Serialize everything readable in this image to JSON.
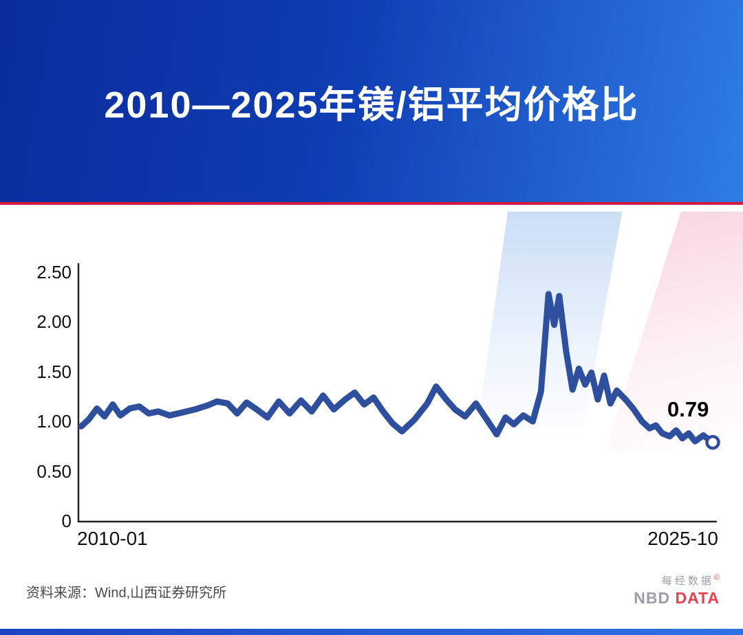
{
  "header": {
    "title": "2010—2025年镁/铝平均价格比"
  },
  "chart_data": {
    "type": "line",
    "title": "2010—2025年镁/铝平均价格比",
    "grid": false,
    "legend": "none",
    "line_color": "#2e4f9e",
    "x_axis": {
      "start_label": "2010-01",
      "end_label": "2025-10",
      "unit": "fraction of span from 2010-01 to 2025-10"
    },
    "y_axis": {
      "min": 0,
      "max": 2.5,
      "tick_values": [
        0,
        0.5,
        1.0,
        1.5,
        2.0,
        2.5
      ],
      "tick_labels": [
        "0",
        "0.50",
        "1.00",
        "1.50",
        "2.00",
        "2.50"
      ]
    },
    "annotations": [
      {
        "text": "0.79",
        "target": "last-point"
      }
    ],
    "series": [
      {
        "name": "镁/铝平均价格比",
        "points": [
          [
            0.0,
            0.95
          ],
          [
            0.012,
            1.02
          ],
          [
            0.025,
            1.13
          ],
          [
            0.037,
            1.05
          ],
          [
            0.05,
            1.17
          ],
          [
            0.062,
            1.06
          ],
          [
            0.077,
            1.13
          ],
          [
            0.092,
            1.15
          ],
          [
            0.107,
            1.08
          ],
          [
            0.122,
            1.1
          ],
          [
            0.14,
            1.06
          ],
          [
            0.16,
            1.09
          ],
          [
            0.18,
            1.12
          ],
          [
            0.2,
            1.16
          ],
          [
            0.215,
            1.2
          ],
          [
            0.232,
            1.18
          ],
          [
            0.247,
            1.08
          ],
          [
            0.262,
            1.19
          ],
          [
            0.278,
            1.12
          ],
          [
            0.295,
            1.04
          ],
          [
            0.313,
            1.2
          ],
          [
            0.33,
            1.08
          ],
          [
            0.348,
            1.21
          ],
          [
            0.365,
            1.1
          ],
          [
            0.383,
            1.26
          ],
          [
            0.4,
            1.12
          ],
          [
            0.418,
            1.22
          ],
          [
            0.433,
            1.29
          ],
          [
            0.448,
            1.17
          ],
          [
            0.463,
            1.24
          ],
          [
            0.478,
            1.1
          ],
          [
            0.493,
            0.98
          ],
          [
            0.508,
            0.9
          ],
          [
            0.528,
            1.02
          ],
          [
            0.548,
            1.18
          ],
          [
            0.562,
            1.35
          ],
          [
            0.578,
            1.22
          ],
          [
            0.592,
            1.12
          ],
          [
            0.608,
            1.05
          ],
          [
            0.625,
            1.18
          ],
          [
            0.642,
            1.02
          ],
          [
            0.658,
            0.87
          ],
          [
            0.672,
            1.04
          ],
          [
            0.685,
            0.97
          ],
          [
            0.7,
            1.06
          ],
          [
            0.715,
            1.0
          ],
          [
            0.728,
            1.3
          ],
          [
            0.74,
            2.28
          ],
          [
            0.749,
            1.97
          ],
          [
            0.757,
            2.26
          ],
          [
            0.768,
            1.7
          ],
          [
            0.778,
            1.32
          ],
          [
            0.788,
            1.53
          ],
          [
            0.798,
            1.37
          ],
          [
            0.808,
            1.49
          ],
          [
            0.818,
            1.22
          ],
          [
            0.828,
            1.46
          ],
          [
            0.838,
            1.18
          ],
          [
            0.848,
            1.31
          ],
          [
            0.862,
            1.22
          ],
          [
            0.875,
            1.12
          ],
          [
            0.888,
            1.0
          ],
          [
            0.9,
            0.93
          ],
          [
            0.91,
            0.96
          ],
          [
            0.92,
            0.88
          ],
          [
            0.932,
            0.85
          ],
          [
            0.942,
            0.91
          ],
          [
            0.952,
            0.83
          ],
          [
            0.962,
            0.88
          ],
          [
            0.972,
            0.8
          ],
          [
            0.985,
            0.86
          ],
          [
            1.0,
            0.79
          ]
        ]
      }
    ]
  },
  "footer": {
    "source": "资料来源：Wind,山西证券研究所"
  },
  "logo": {
    "line1": "每经数据",
    "mark": "©",
    "nbd": "NBD",
    "data": "DATA"
  },
  "colors": {
    "header_gradient_start": "#0a2c9c",
    "header_gradient_end": "#2f7ce6",
    "divider_red": "#d11a3c",
    "line": "#2e4f9e",
    "accent_red": "#e8404f",
    "logo_gray": "#9aa0a8",
    "bottom_bar_start": "#1b43c4",
    "bottom_bar_end": "#2f72e4"
  }
}
